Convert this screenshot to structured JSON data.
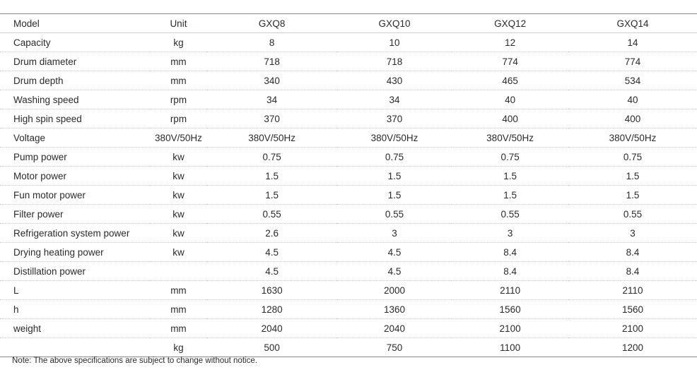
{
  "table": {
    "headers": [
      "Model",
      "Unit",
      "GXQ8",
      "GXQ10",
      "GXQ12",
      "GXQ14"
    ],
    "rows": [
      [
        "Capacity",
        "kg",
        "8",
        "10",
        "12",
        "14"
      ],
      [
        "Drum diameter",
        "mm",
        "718",
        "718",
        "774",
        "774"
      ],
      [
        "Drum depth",
        "mm",
        "340",
        "430",
        "465",
        "534"
      ],
      [
        "Washing speed",
        "rpm",
        "34",
        "34",
        "40",
        "40"
      ],
      [
        "High spin speed",
        "rpm",
        "370",
        "370",
        "400",
        "400"
      ],
      [
        "Voltage",
        "380V/50Hz",
        "380V/50Hz",
        "380V/50Hz",
        "380V/50Hz",
        "380V/50Hz"
      ],
      [
        "Pump power",
        "kw",
        "0.75",
        "0.75",
        "0.75",
        "0.75"
      ],
      [
        "Motor power",
        "kw",
        "1.5",
        "1.5",
        "1.5",
        "1.5"
      ],
      [
        "Fun motor power",
        "kw",
        "1.5",
        "1.5",
        "1.5",
        "1.5"
      ],
      [
        "Filter power",
        "kw",
        "0.55",
        "0.55",
        "0.55",
        "0.55"
      ],
      [
        "Refrigeration system power",
        "kw",
        "2.6",
        "3",
        "3",
        "3"
      ],
      [
        "Drying heating power",
        "kw",
        "4.5",
        "4.5",
        "8.4",
        "8.4"
      ],
      [
        "Distillation power",
        "",
        "4.5",
        "4.5",
        "8.4",
        "8.4"
      ],
      [
        "L",
        "mm",
        "1630",
        "2000",
        "2110",
        "2110"
      ],
      [
        "h",
        "mm",
        "1280",
        "1360",
        "1560",
        "1560"
      ],
      [
        "weight",
        "mm",
        "2040",
        "2040",
        "2100",
        "2100"
      ],
      [
        "",
        "kg",
        "500",
        "750",
        "1100",
        "1200"
      ]
    ]
  },
  "note": "Note: The above specifications are subject to change without notice."
}
